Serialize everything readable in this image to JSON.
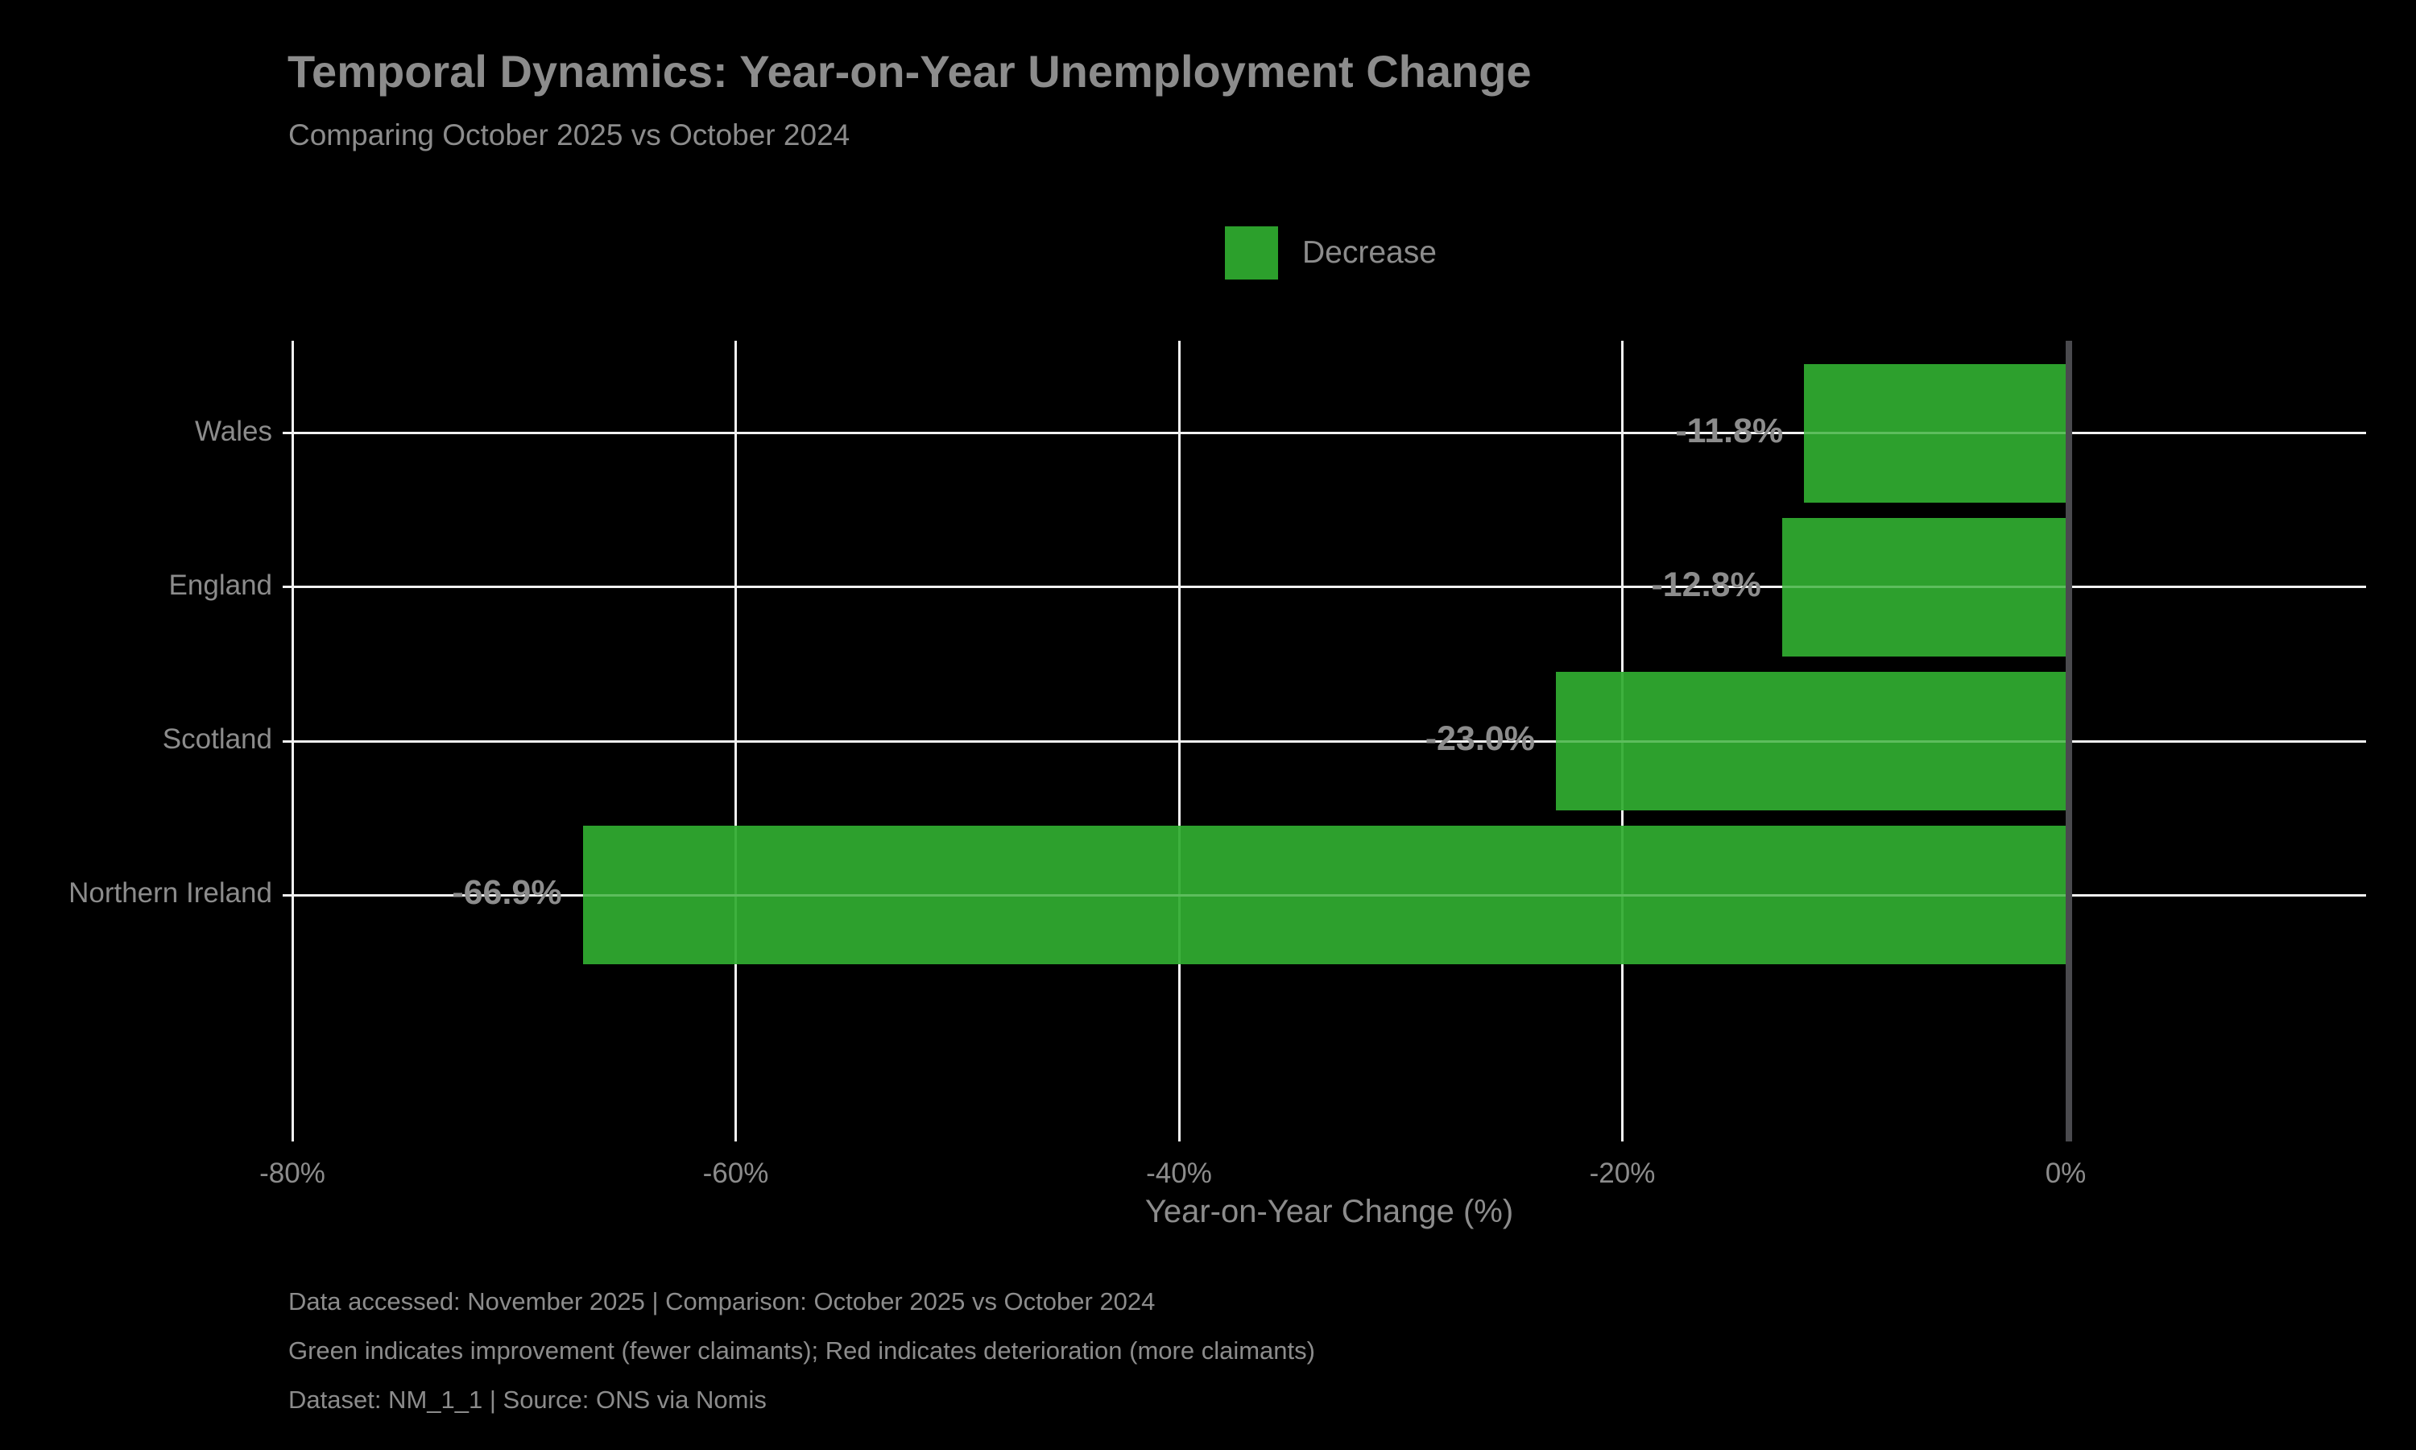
{
  "title": "Temporal Dynamics: Year-on-Year Unemployment Change",
  "subtitle": "Comparing October 2025 vs October 2024",
  "legend": {
    "label": "Decrease"
  },
  "colors": {
    "background": "#000000",
    "bar_green": "#2ca02c",
    "gridline": "#f2f2f2",
    "zero_axis_line": "#4a4a4e",
    "text_gray": "#8c8c8c"
  },
  "chart_data": {
    "type": "bar",
    "orientation": "horizontal",
    "title": "Temporal Dynamics: Year-on-Year Unemployment Change",
    "subtitle": "Comparing October 2025 vs October 2024",
    "categories": [
      "Wales",
      "England",
      "Scotland",
      "Northern Ireland"
    ],
    "values": [
      -11.8,
      -12.8,
      -23.0,
      -66.9
    ],
    "value_labels": [
      "-11.8%",
      "-12.8%",
      "-23.0%",
      "-66.9%"
    ],
    "series_name": "Decrease",
    "xlabel": "Year-on-Year Change (%)",
    "ylabel": "",
    "xlim": [
      -80,
      13.6
    ],
    "xticks": [
      -80,
      -60,
      -40,
      -20,
      0
    ],
    "xtick_labels": [
      "-80%",
      "-60%",
      "-40%",
      "-20%",
      "0%"
    ],
    "grid": true,
    "legend_position": "upper center",
    "bar_color": "#2ca02c"
  },
  "footer": {
    "lines": [
      "Data accessed: November 2025 | Comparison: October 2025 vs October 2024",
      "Green indicates improvement (fewer claimants); Red indicates deterioration (more claimants)",
      "Dataset: NM_1_1 | Source: ONS via Nomis"
    ]
  }
}
